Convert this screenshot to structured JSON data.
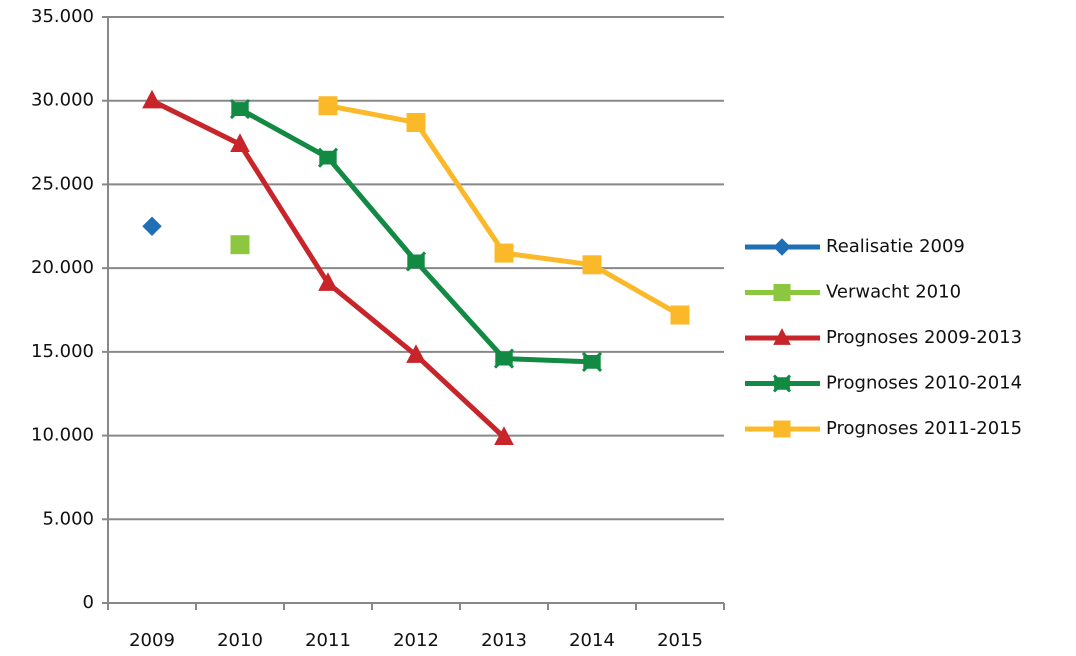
{
  "chart_data": {
    "type": "line",
    "categories": [
      "2009",
      "2010",
      "2011",
      "2012",
      "2013",
      "2014",
      "2015"
    ],
    "series": [
      {
        "name": "Realisatie 2009",
        "color": "#1f6fb5",
        "marker": "diamond",
        "values": [
          22500,
          null,
          null,
          null,
          null,
          null,
          null
        ]
      },
      {
        "name": "Verwacht 2010",
        "color": "#8dc63f",
        "marker": "square",
        "values": [
          null,
          21400,
          null,
          null,
          null,
          null,
          null
        ]
      },
      {
        "name": "Prognoses 2009-2013",
        "color": "#c8252b",
        "marker": "triangle",
        "values": [
          30000,
          27400,
          19100,
          14800,
          9900,
          null,
          null
        ]
      },
      {
        "name": "Prognoses 2010-2014",
        "color": "#138a43",
        "marker": "star",
        "values": [
          null,
          29500,
          26600,
          20400,
          14600,
          14400,
          null
        ]
      },
      {
        "name": "Prognoses 2011-2015",
        "color": "#fbb829",
        "marker": "square",
        "values": [
          null,
          null,
          29700,
          28700,
          20900,
          20200,
          17200
        ]
      }
    ],
    "ylim": [
      0,
      35000
    ],
    "yticks": [
      0,
      {
        "value": 5000,
        "label": "5.000"
      },
      {
        "value": 10000,
        "label": "10.000"
      },
      {
        "value": 15000,
        "label": "15.000"
      },
      {
        "value": 20000,
        "label": "20.000"
      },
      {
        "value": 25000,
        "label": "25.000"
      },
      {
        "value": 30000,
        "label": "30.000"
      },
      {
        "value": 35000,
        "label": "35.000"
      }
    ],
    "grid": true,
    "legend": "right"
  }
}
